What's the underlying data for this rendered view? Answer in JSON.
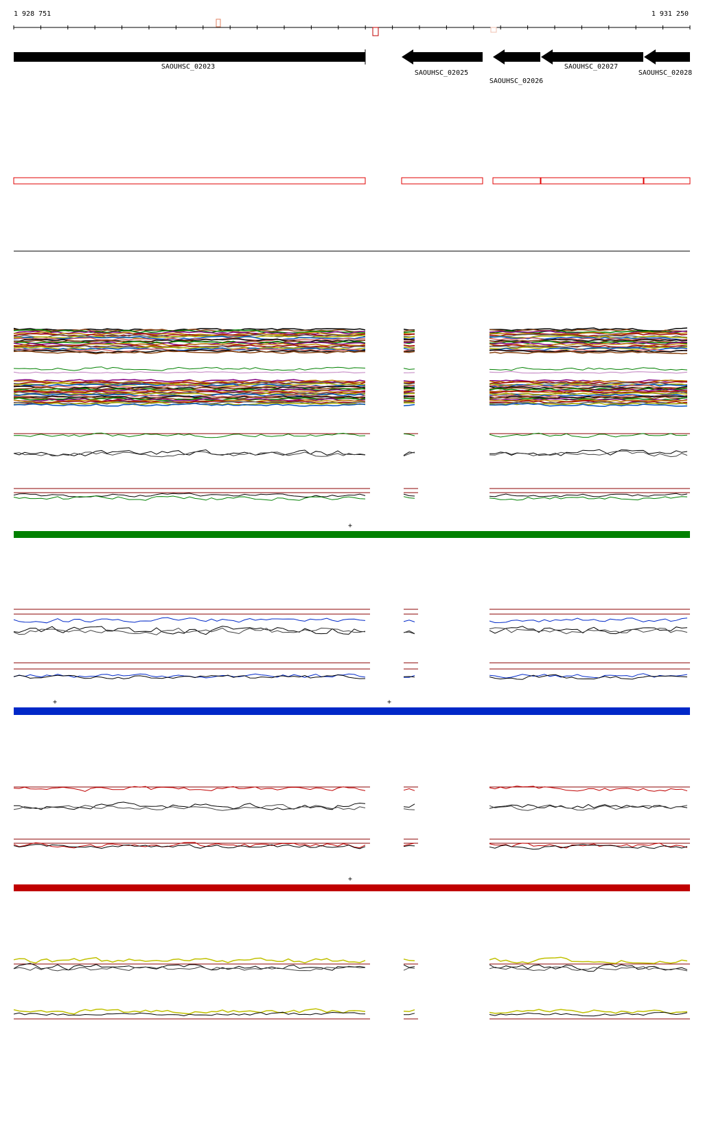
{
  "ruler": {
    "start": "1 928 751",
    "end": "1 931 250"
  },
  "genes": [
    {
      "label": "SAOUHSC_02023"
    },
    {
      "label": "SAOUHSC_02025"
    },
    {
      "label": "SAOUHSC_02026"
    },
    {
      "label": "SAOUHSC_02027"
    },
    {
      "label": "SAOUHSC_02028"
    }
  ],
  "markers": [
    "+",
    "+",
    "+",
    "+"
  ]
}
